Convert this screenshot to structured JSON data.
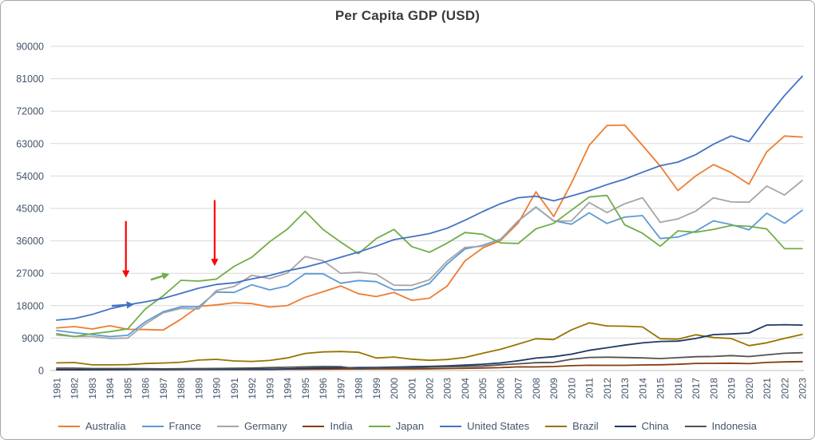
{
  "frame": {
    "title": "Per Capita GDP (USD)"
  },
  "chart_data": {
    "type": "line",
    "title": "Per Capita GDP (USD)",
    "xlabel": "",
    "ylabel": "",
    "ylim": [
      0,
      90000
    ],
    "y_ticks": [
      0,
      9000,
      18000,
      27000,
      36000,
      45000,
      54000,
      63000,
      72000,
      81000,
      90000
    ],
    "grid": true,
    "legend_position": "bottom",
    "grid_color": "#D9D9D9",
    "axis_line_color": "#BFBFBF",
    "axis_text_color": "#44546A",
    "title_color": "#3b3b3b",
    "x": [
      "1981",
      "1982",
      "1983",
      "1984",
      "1985",
      "1986",
      "1987",
      "1988",
      "1989",
      "1990",
      "1991",
      "1992",
      "1993",
      "1994",
      "1995",
      "1996",
      "1997",
      "1998",
      "1999",
      "2000",
      "2001",
      "2002",
      "2003",
      "2004",
      "2005",
      "2006",
      "2007",
      "2008",
      "2009",
      "2010",
      "2011",
      "2012",
      "2013",
      "2014",
      "2015",
      "2016",
      "2017",
      "2018",
      "2019",
      "2020",
      "2021",
      "2022",
      "2023"
    ],
    "series": [
      {
        "name": "Australia",
        "color": "#ED7D31",
        "values": [
          11834,
          12190,
          11518,
          12431,
          11437,
          11366,
          11240,
          14254,
          17782,
          18211,
          18822,
          18570,
          17634,
          18046,
          20320,
          21867,
          23468,
          21318,
          20533,
          21679,
          19490,
          20082,
          23447,
          30431,
          33999,
          36045,
          40960,
          49601,
          42772,
          52022,
          62517,
          68012,
          68150,
          62510,
          56755,
          49971,
          54028,
          57181,
          54941,
          51720,
          60697,
          65100,
          64821
        ]
      },
      {
        "name": "France",
        "color": "#5B9BD5",
        "values": [
          11105,
          10497,
          9993,
          9420,
          9768,
          13536,
          16313,
          17697,
          17694,
          21794,
          21675,
          23814,
          22380,
          23497,
          26890,
          26871,
          24229,
          24974,
          24673,
          22364,
          22434,
          24177,
          29568,
          33741,
          34760,
          36443,
          41508,
          45334,
          41575,
          40638,
          43790,
          40838,
          42592,
          43011,
          36638,
          37037,
          38685,
          41557,
          40494,
          39055,
          43659,
          40886,
          44461
        ]
      },
      {
        "name": "Germany",
        "color": "#A5A5A5",
        "values": [
          9841,
          9475,
          9436,
          8907,
          9017,
          12900,
          16017,
          17232,
          17078,
          22220,
          23358,
          26438,
          25523,
          27077,
          31658,
          30486,
          26971,
          27289,
          26726,
          23695,
          23634,
          25205,
          30360,
          34166,
          34507,
          36323,
          41587,
          45427,
          41486,
          41532,
          46645,
          43856,
          46286,
          47960,
          41140,
          42099,
          44240,
          47939,
          46795,
          46735,
          51204,
          48718,
          52746
        ]
      },
      {
        "name": "India",
        "color": "#843C0C",
        "values": [
          270,
          274,
          291,
          277,
          296,
          310,
          340,
          354,
          346,
          367,
          303,
          317,
          301,
          346,
          373,
          400,
          415,
          413,
          441,
          443,
          451,
          470,
          546,
          627,
          711,
          806,
          1028,
          998,
          1101,
          1357,
          1458,
          1443,
          1449,
          1560,
          1605,
          1732,
          1980,
          1997,
          2050,
          1913,
          2238,
          2388,
          2485
        ]
      },
      {
        "name": "Japan",
        "color": "#70AD47",
        "values": [
          10212,
          9429,
          10214,
          10790,
          11577,
          17112,
          20745,
          25059,
          24822,
          25371,
          28925,
          31465,
          35766,
          39268,
          44210,
          39164,
          35639,
          32437,
          36622,
          39173,
          34411,
          32832,
          35390,
          38307,
          37819,
          35434,
          35275,
          39339,
          40855,
          44508,
          48168,
          48603,
          40454,
          38109,
          34524,
          38762,
          38387,
          39159,
          40247,
          40041,
          39313,
          33854,
          33834
        ]
      },
      {
        "name": "United States",
        "color": "#4472C4",
        "values": [
          13993,
          14439,
          15561,
          17121,
          18236,
          19071,
          20039,
          21417,
          22857,
          23889,
          24342,
          25419,
          26387,
          27695,
          28691,
          29968,
          31459,
          32854,
          34515,
          36330,
          37134,
          38023,
          39496,
          41713,
          44115,
          46299,
          47976,
          48383,
          47100,
          48468,
          49883,
          51603,
          53107,
          55050,
          56863,
          57867,
          59908,
          62823,
          65120,
          63528,
          70219,
          76330,
          81695
        ]
      },
      {
        "name": "Brazil",
        "color": "#997300",
        "values": [
          2133,
          2227,
          1570,
          1578,
          1648,
          1941,
          2087,
          2300,
          2908,
          3100,
          2654,
          2525,
          2791,
          3500,
          4748,
          5166,
          5282,
          5087,
          3478,
          3749,
          3156,
          2829,
          3070,
          3637,
          4790,
          5886,
          7348,
          8831,
          8597,
          11286,
          13245,
          12370,
          12300,
          12113,
          8814,
          8710,
          9925,
          9151,
          8897,
          6923,
          7696,
          8918,
          10044
        ]
      },
      {
        "name": "China",
        "color": "#203864",
        "values": [
          197,
          203,
          225,
          250,
          294,
          282,
          251,
          283,
          310,
          318,
          333,
          366,
          377,
          473,
          610,
          709,
          782,
          829,
          873,
          959,
          1053,
          1149,
          1289,
          1509,
          1753,
          2099,
          2694,
          3468,
          3832,
          4550,
          5618,
          6317,
          7051,
          7679,
          8067,
          8148,
          8879,
          9977,
          10144,
          10409,
          12618,
          12720,
          12614
        ]
      },
      {
        "name": "Indonesia",
        "color": "#525252",
        "values": [
          672,
          659,
          562,
          557,
          556,
          505,
          467,
          501,
          551,
          585,
          632,
          697,
          827,
          912,
          1026,
          1137,
          1064,
          464,
          671,
          780,
          748,
          900,
          1066,
          1150,
          1263,
          1590,
          1860,
          2167,
          2262,
          3122,
          3643,
          3694,
          3624,
          3492,
          3332,
          3563,
          3838,
          3894,
          4151,
          3870,
          4334,
          4788,
          4940
        ]
      }
    ],
    "annotations": [
      {
        "name": "red-down-arrow-1985",
        "color": "#FF0000",
        "width": 2.2,
        "from": {
          "year": 1984.9,
          "value": 41500
        },
        "to": {
          "year": 1984.9,
          "value": 25800
        }
      },
      {
        "name": "red-down-arrow-1990",
        "color": "#FF0000",
        "width": 2.2,
        "from": {
          "year": 1989.9,
          "value": 47300
        },
        "to": {
          "year": 1989.9,
          "value": 29000
        }
      },
      {
        "name": "blue-right-arrow-1985",
        "color": "#4472C4",
        "width": 2.4,
        "from": {
          "year": 1984.1,
          "value": 17950
        },
        "to": {
          "year": 1985.35,
          "value": 18350
        }
      },
      {
        "name": "green-up-right-arrow-1987",
        "color": "#70AD47",
        "width": 2.4,
        "from": {
          "year": 1986.3,
          "value": 25200
        },
        "to": {
          "year": 1987.35,
          "value": 26800
        }
      }
    ]
  }
}
